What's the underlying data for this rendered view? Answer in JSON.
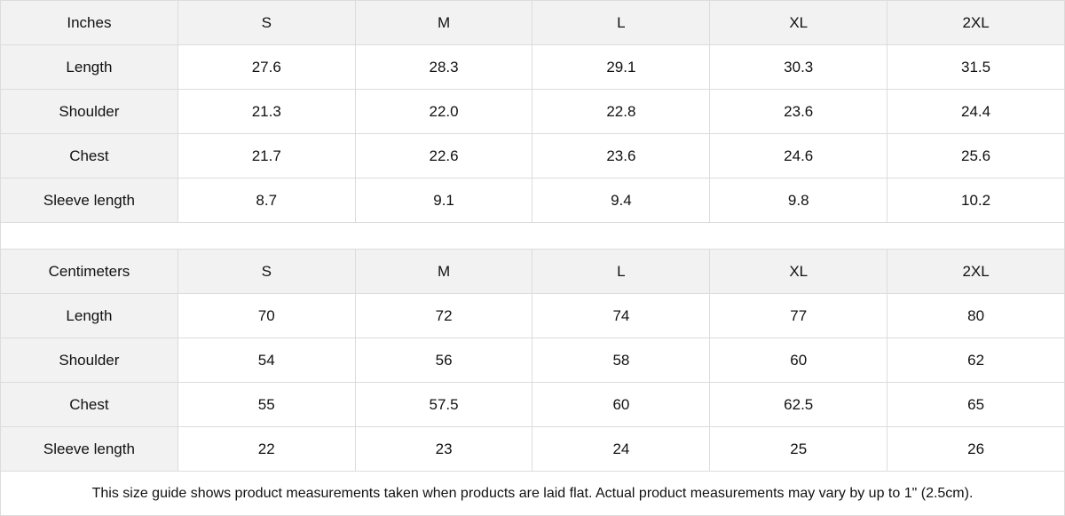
{
  "tables": [
    {
      "header": [
        "Inches",
        "S",
        "M",
        "L",
        "XL",
        "2XL"
      ],
      "rows": [
        [
          "Length",
          "27.6",
          "28.3",
          "29.1",
          "30.3",
          "31.5"
        ],
        [
          "Shoulder",
          "21.3",
          "22.0",
          "22.8",
          "23.6",
          "24.4"
        ],
        [
          "Chest",
          "21.7",
          "22.6",
          "23.6",
          "24.6",
          "25.6"
        ],
        [
          "Sleeve length",
          "8.7",
          "9.1",
          "9.4",
          "9.8",
          "10.2"
        ]
      ]
    },
    {
      "header": [
        "Centimeters",
        "S",
        "M",
        "L",
        "XL",
        "2XL"
      ],
      "rows": [
        [
          "Length",
          "70",
          "72",
          "74",
          "77",
          "80"
        ],
        [
          "Shoulder",
          "54",
          "56",
          "58",
          "60",
          "62"
        ],
        [
          "Chest",
          "55",
          "57.5",
          "60",
          "62.5",
          "65"
        ],
        [
          "Sleeve length",
          "22",
          "23",
          "24",
          "25",
          "26"
        ]
      ]
    }
  ],
  "note": "This size guide shows product measurements taken when products are laid flat.  Actual product measurements may vary by up to 1\" (2.5cm).",
  "colors": {
    "header_bg": "#f2f2f2",
    "border": "#dcdcdc"
  }
}
